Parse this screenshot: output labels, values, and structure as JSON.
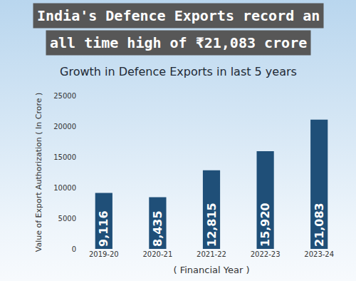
{
  "chart_data": {
    "type": "bar",
    "title": "India's Defence Exports record an all time high of ₹21,083 crore",
    "subtitle": "Growth in Defence Exports in last 5 years",
    "x_label": "( Financial Year )",
    "y_label": "Value of Export Authorization ( In Crore )",
    "categories": [
      "2019-20",
      "2020-21",
      "2021-22",
      "2022-23",
      "2023-24"
    ],
    "values": [
      9116,
      8435,
      12815,
      15920,
      21083
    ],
    "value_labels": [
      "9,116",
      "8,435",
      "12,815",
      "15,920",
      "21,083"
    ],
    "data_labels": true,
    "color": "#1f4f78",
    "ylim": [
      0,
      25000
    ],
    "yticks": [
      0,
      5000,
      10000,
      15000,
      20000,
      25000
    ],
    "grid": false
  }
}
